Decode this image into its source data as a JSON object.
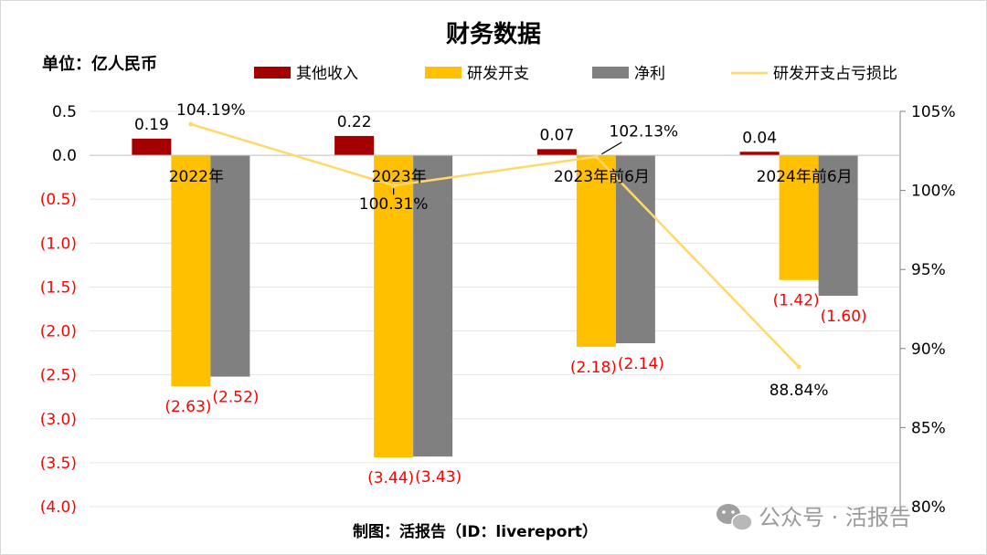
{
  "chart_data": {
    "type": "bar",
    "title": "财务数据",
    "unit_label": "单位：亿人民币",
    "source": "制图：活报告（ID：livereport）",
    "categories": [
      "2022年",
      "2023年",
      "2023年前6月",
      "2024年前6月"
    ],
    "series": [
      {
        "name": "其他收入",
        "type": "bar",
        "axis": "left",
        "color": "#A50000",
        "values": [
          0.19,
          0.22,
          0.07,
          0.04
        ],
        "labels": [
          "0.19",
          "0.22",
          "0.07",
          "0.04"
        ]
      },
      {
        "name": "研发开支",
        "type": "bar",
        "axis": "left",
        "color": "#FFC000",
        "values": [
          -2.63,
          -3.44,
          -2.18,
          -1.42
        ],
        "labels": [
          "(2.63)",
          "(3.44)",
          "(2.18)",
          "(1.42)"
        ]
      },
      {
        "name": "净利",
        "type": "bar",
        "axis": "left",
        "color": "#808080",
        "values": [
          -2.52,
          -3.43,
          -2.14,
          -1.6
        ],
        "labels": [
          "(2.52)",
          "(3.43)",
          "(2.14)",
          "(1.60)"
        ]
      },
      {
        "name": "研发开支占亏损比",
        "type": "line",
        "axis": "right",
        "color": "#FFD966",
        "values": [
          104.19,
          100.31,
          102.13,
          88.84
        ],
        "labels": [
          "104.19%",
          "100.31%",
          "102.13%",
          "88.84%"
        ]
      }
    ],
    "y_left": {
      "ylim": [
        -4.0,
        0.5
      ],
      "ticks": [
        0.5,
        0.0,
        -0.5,
        -1.0,
        -1.5,
        -2.0,
        -2.5,
        -3.0,
        -3.5,
        -4.0
      ],
      "tick_labels": [
        "0.5",
        "0.0",
        "(0.5)",
        "(1.0)",
        "(1.5)",
        "(2.0)",
        "(2.5)",
        "(3.0)",
        "(3.5)",
        "(4.0)"
      ],
      "positive_color": "#000000",
      "negative_color": "#FF0000"
    },
    "y_right": {
      "ylim": [
        80,
        105
      ],
      "ticks": [
        105,
        100,
        95,
        90,
        85,
        80
      ],
      "tick_labels": [
        "105%",
        "100%",
        "95%",
        "90%",
        "85%",
        "80%"
      ]
    },
    "grid": true,
    "legend": "top"
  },
  "watermark": "公众号 · 活报告"
}
